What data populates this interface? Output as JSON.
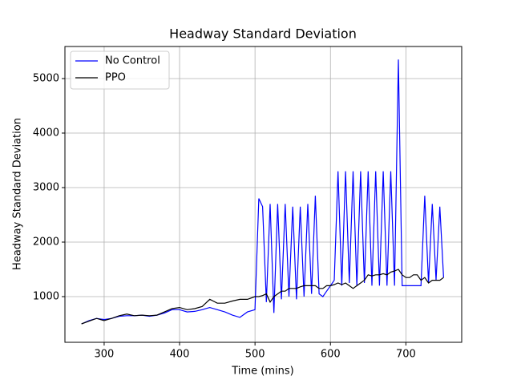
{
  "chart_data": {
    "type": "line",
    "title": "Headway Standard Deviation",
    "x_label": "Time (mins)",
    "y_label": "Headway Standard Deviation",
    "x": [
      270,
      280,
      290,
      300,
      310,
      320,
      330,
      340,
      350,
      360,
      370,
      380,
      390,
      400,
      410,
      420,
      430,
      440,
      450,
      460,
      470,
      480,
      490,
      500,
      505,
      510,
      515,
      520,
      525,
      530,
      535,
      540,
      545,
      550,
      555,
      560,
      565,
      570,
      575,
      580,
      585,
      590,
      595,
      600,
      605,
      610,
      615,
      620,
      625,
      630,
      635,
      640,
      645,
      650,
      655,
      660,
      665,
      670,
      675,
      680,
      685,
      690,
      695,
      700,
      705,
      710,
      715,
      720,
      725,
      730,
      735,
      740,
      745,
      750
    ],
    "series": [
      {
        "name": "No Control",
        "color": "#0000ff",
        "values": [
          500,
          560,
          600,
          580,
          600,
          640,
          650,
          650,
          660,
          640,
          660,
          700,
          760,
          760,
          720,
          730,
          760,
          800,
          760,
          720,
          660,
          620,
          720,
          760,
          2800,
          2650,
          900,
          2700,
          700,
          2700,
          950,
          2700,
          1000,
          2650,
          950,
          2650,
          1000,
          2700,
          1050,
          2850,
          1050,
          1000,
          1100,
          1200,
          1300,
          3300,
          1200,
          3300,
          1250,
          3300,
          1200,
          3300,
          1250,
          3300,
          1200,
          3300,
          1200,
          3300,
          1200,
          3300,
          1200,
          5350,
          1200,
          1200,
          1200,
          1200,
          1200,
          1200,
          2850,
          1250,
          2700,
          1300,
          2650,
          1350
        ]
      },
      {
        "name": "PPO",
        "color": "#000000",
        "values": [
          500,
          550,
          600,
          560,
          600,
          650,
          680,
          650,
          660,
          650,
          660,
          720,
          780,
          800,
          760,
          780,
          820,
          950,
          880,
          880,
          920,
          950,
          950,
          1000,
          1000,
          1020,
          1050,
          900,
          1000,
          1050,
          1100,
          1100,
          1150,
          1150,
          1150,
          1180,
          1200,
          1200,
          1200,
          1200,
          1150,
          1150,
          1200,
          1200,
          1220,
          1250,
          1220,
          1250,
          1200,
          1150,
          1200,
          1250,
          1300,
          1400,
          1380,
          1400,
          1400,
          1420,
          1400,
          1450,
          1470,
          1500,
          1400,
          1350,
          1350,
          1400,
          1400,
          1300,
          1350,
          1250,
          1300,
          1300,
          1300,
          1350
        ]
      }
    ],
    "xlim": [
      248,
      774
    ],
    "ylim": [
      162,
      5588
    ],
    "xticks": [
      300,
      400,
      500,
      600,
      700
    ],
    "yticks": [
      1000,
      2000,
      3000,
      4000,
      5000
    ],
    "grid": true,
    "legend": "upper-left"
  }
}
